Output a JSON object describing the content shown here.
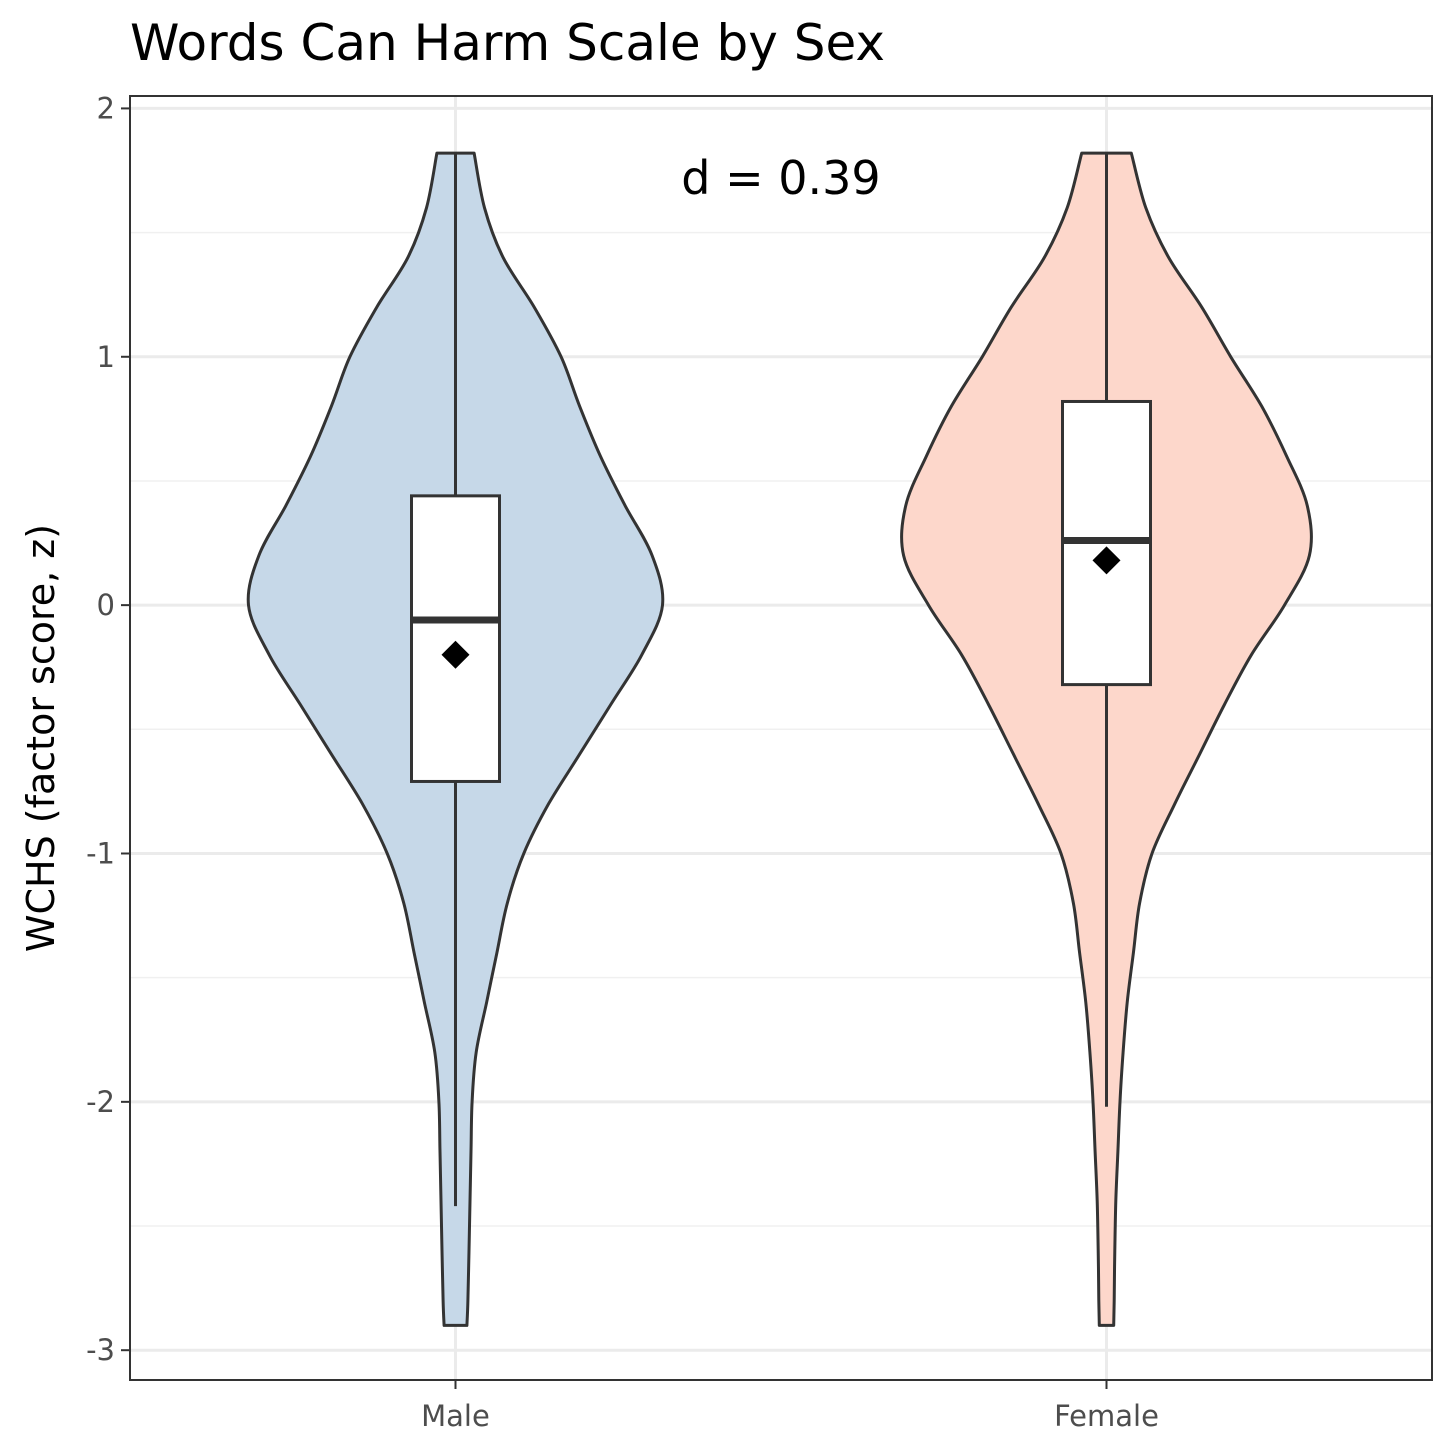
{
  "chart_data": {
    "type": "violin",
    "title": "Words Can Harm Scale by Sex",
    "ylabel": "WCHS (factor score, z)",
    "xlabel": "",
    "categories": [
      "Male",
      "Female"
    ],
    "ylim": [
      -3.12,
      2.05
    ],
    "yticks": [
      2,
      1,
      0,
      -1,
      -2,
      -3
    ],
    "ytick_labels": [
      "2",
      "1",
      "0",
      "-1",
      "-2",
      "-3"
    ],
    "grid": true,
    "legend": "none",
    "annotation": "d = 0.39",
    "series": [
      {
        "category": "Male",
        "color": "#c6d8e8",
        "box": {
          "whisker_low": -2.42,
          "q1": -0.71,
          "median": -0.06,
          "q3": 0.44,
          "whisker_high": 1.82
        },
        "mean": -0.2,
        "violin": {
          "y": [
            1.82,
            1.6,
            1.4,
            1.2,
            1.0,
            0.8,
            0.6,
            0.4,
            0.2,
            0.0,
            -0.2,
            -0.4,
            -0.6,
            -0.8,
            -1.0,
            -1.2,
            -1.4,
            -1.6,
            -1.8,
            -2.0,
            -2.2,
            -2.4,
            -2.6,
            -2.8,
            -2.9
          ],
          "half_width": [
            0.09,
            0.14,
            0.23,
            0.38,
            0.51,
            0.6,
            0.7,
            0.82,
            0.95,
            1.0,
            0.9,
            0.75,
            0.6,
            0.45,
            0.33,
            0.25,
            0.2,
            0.15,
            0.1,
            0.08,
            0.075,
            0.07,
            0.065,
            0.06,
            0.055
          ]
        }
      },
      {
        "category": "Female",
        "color": "#fdd7cb",
        "box": {
          "whisker_low": -2.02,
          "q1": -0.32,
          "median": 0.26,
          "q3": 0.82,
          "whisker_high": 1.82
        },
        "mean": 0.18,
        "violin": {
          "y": [
            1.82,
            1.6,
            1.4,
            1.2,
            1.0,
            0.8,
            0.6,
            0.4,
            0.2,
            0.0,
            -0.2,
            -0.4,
            -0.6,
            -0.8,
            -1.0,
            -1.2,
            -1.4,
            -1.6,
            -1.8,
            -2.0,
            -2.2,
            -2.4,
            -2.6,
            -2.8,
            -2.9
          ],
          "half_width": [
            0.12,
            0.19,
            0.3,
            0.46,
            0.6,
            0.75,
            0.87,
            0.97,
            0.98,
            0.86,
            0.7,
            0.57,
            0.45,
            0.33,
            0.22,
            0.16,
            0.13,
            0.1,
            0.08,
            0.065,
            0.055,
            0.045,
            0.04,
            0.037,
            0.035
          ]
        }
      }
    ]
  }
}
